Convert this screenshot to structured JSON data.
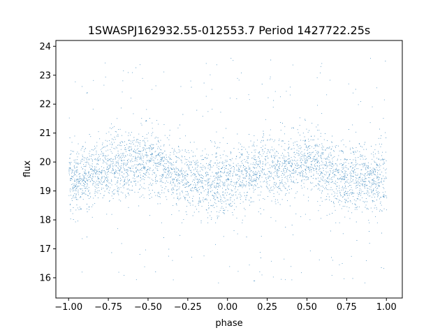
{
  "chart_data": {
    "type": "scatter",
    "title": "1SWASPJ162932.55-012553.7 Period 1427722.25s",
    "xlabel": "phase",
    "ylabel": "flux",
    "xlim": [
      -1.08,
      1.1
    ],
    "ylim": [
      15.3,
      24.2
    ],
    "x_ticks": [
      -1.0,
      -0.75,
      -0.5,
      -0.25,
      0.0,
      0.25,
      0.5,
      0.75,
      1.0
    ],
    "x_tick_labels": [
      "−1.00",
      "−0.75",
      "−0.50",
      "−0.25",
      "0.00",
      "0.25",
      "0.50",
      "0.75",
      "1.00"
    ],
    "y_ticks": [
      16,
      17,
      18,
      19,
      20,
      21,
      22,
      23,
      24
    ],
    "y_tick_labels": [
      "16",
      "17",
      "18",
      "19",
      "20",
      "21",
      "22",
      "23",
      "24"
    ],
    "grid": false,
    "legend": "none",
    "point_color": "#1f77b4",
    "series": [
      {
        "phase_range": [
          -1.0,
          1.0
        ],
        "mean_flux_profile": [
          {
            "phase": -1.0,
            "flux": 19.3
          },
          {
            "phase": -0.75,
            "flux": 19.8
          },
          {
            "phase": -0.5,
            "flux": 20.0
          },
          {
            "phase": -0.25,
            "flux": 19.4
          },
          {
            "phase": 0.0,
            "flux": 19.3
          },
          {
            "phase": 0.25,
            "flux": 19.8
          },
          {
            "phase": 0.5,
            "flux": 20.0
          },
          {
            "phase": 0.75,
            "flux": 19.4
          },
          {
            "phase": 1.0,
            "flux": 19.3
          }
        ],
        "core_band": [
          18.2,
          21.2
        ],
        "outlier_range": [
          15.8,
          23.6
        ]
      }
    ]
  }
}
